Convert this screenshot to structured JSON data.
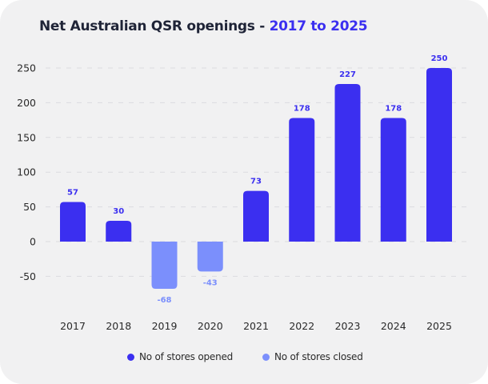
{
  "title": {
    "main": "Net Australian QSR openings - ",
    "accent": "2017 to 2025"
  },
  "colors": {
    "opened": "#3b2ff0",
    "closed": "#7b8ffc",
    "title": "#1f2437",
    "grid": "#dcdcdf",
    "card": "#f1f1f2"
  },
  "chart_data": {
    "type": "bar",
    "title": "Net Australian QSR openings - 2017 to 2025",
    "xlabel": "",
    "ylabel": "",
    "categories": [
      "2017",
      "2018",
      "2019",
      "2020",
      "2021",
      "2022",
      "2023",
      "2024",
      "2025"
    ],
    "values": [
      57,
      30,
      -68,
      -43,
      73,
      178,
      227,
      178,
      250
    ],
    "data_labels": [
      "57",
      "30",
      "-68",
      "-43",
      "73",
      "178",
      "227",
      "178",
      "250"
    ],
    "series": [
      {
        "name": "No of stores opened",
        "color": "#3b2ff0",
        "applies_to": "positive values"
      },
      {
        "name": "No of stores closed",
        "color": "#7b8ffc",
        "applies_to": "negative values"
      }
    ],
    "yticks": [
      250,
      200,
      150,
      100,
      50,
      0,
      -50
    ],
    "ytick_labels": [
      "250",
      "200",
      "150",
      "100",
      "50",
      "0",
      "-50"
    ],
    "ylim": [
      -75,
      260
    ],
    "grid": true,
    "grid_style": "dashed horizontal",
    "legend_position": "bottom-center"
  },
  "legend": [
    {
      "label": "No of stores opened",
      "color": "#3b2ff0"
    },
    {
      "label": "No of stores closed",
      "color": "#7b8ffc"
    }
  ]
}
